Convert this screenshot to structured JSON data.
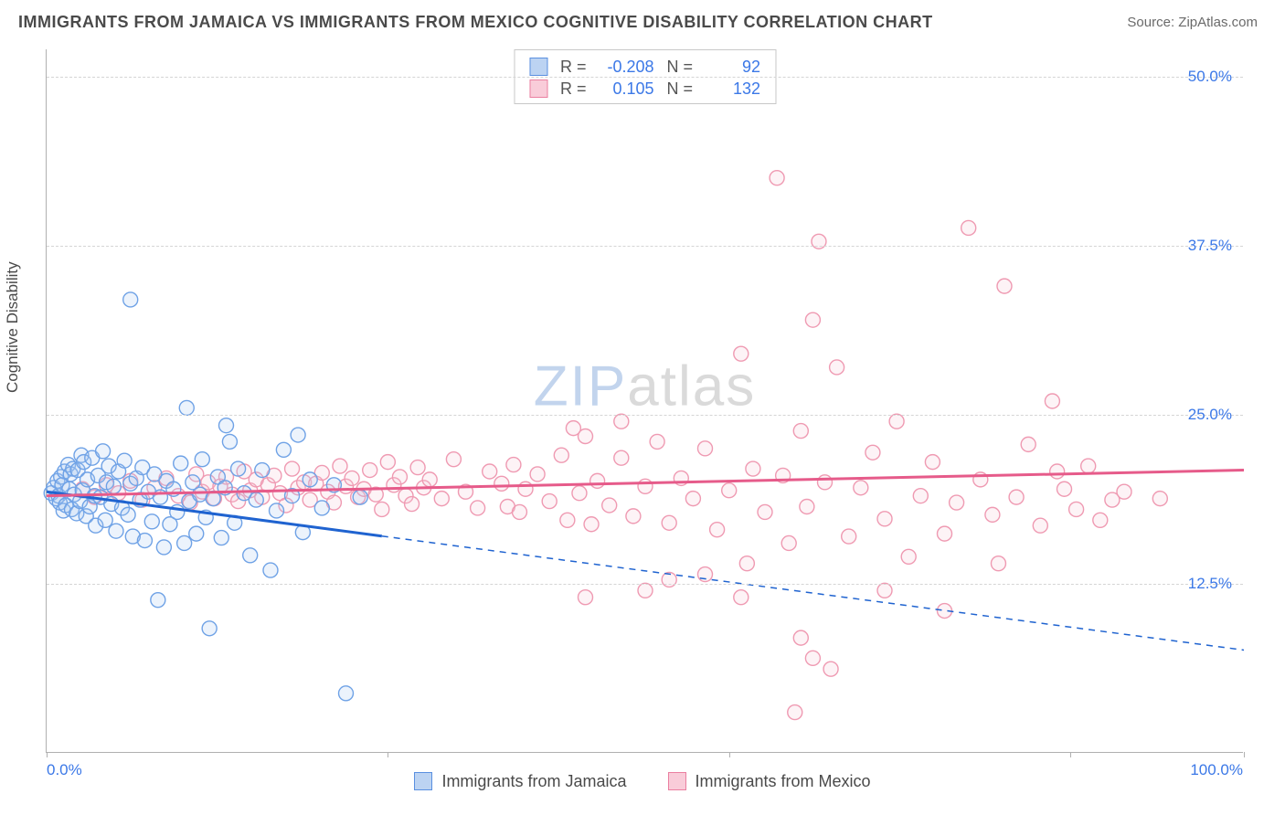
{
  "title": "IMMIGRANTS FROM JAMAICA VS IMMIGRANTS FROM MEXICO COGNITIVE DISABILITY CORRELATION CHART",
  "source_label": "Source:",
  "source_value": "ZipAtlas.com",
  "y_axis_title": "Cognitive Disability",
  "watermark_a": "ZIP",
  "watermark_b": "atlas",
  "chart": {
    "type": "scatter",
    "xlim": [
      0,
      100
    ],
    "ylim": [
      0,
      52
    ],
    "x_tick_positions": [
      0,
      28.5,
      57,
      85.5,
      100
    ],
    "x_tick_labels_left": "0.0%",
    "x_tick_labels_right": "100.0%",
    "y_grid": [
      12.5,
      25.0,
      37.5,
      50.0
    ],
    "y_tick_labels": [
      "12.5%",
      "25.0%",
      "37.5%",
      "50.0%"
    ],
    "background_color": "#ffffff",
    "grid_color": "#d5d5d5",
    "axis_color": "#b0b0b0",
    "tick_label_color": "#3b78e7",
    "marker_radius": 8,
    "marker_stroke_width": 1.4,
    "marker_fill_opacity": 0.22,
    "series": [
      {
        "name": "Immigrants from Jamaica",
        "color_stroke": "#6fa2e6",
        "color_fill": "#a8c7f0",
        "legend_swatch_fill": "#bcd3f2",
        "legend_swatch_stroke": "#5a8fe0",
        "trend_color": "#1f63d0",
        "R": "-0.208",
        "N": "92",
        "trend_line": {
          "x1": 0,
          "y1": 19.3,
          "x2": 100,
          "y2": 7.6
        },
        "trend_solid_until_x": 28,
        "points": [
          [
            0.4,
            19.2
          ],
          [
            0.6,
            19.6
          ],
          [
            0.8,
            18.8
          ],
          [
            0.9,
            20.1
          ],
          [
            1.0,
            19.0
          ],
          [
            1.1,
            18.5
          ],
          [
            1.2,
            20.4
          ],
          [
            1.3,
            19.8
          ],
          [
            1.4,
            17.9
          ],
          [
            1.5,
            20.8
          ],
          [
            1.6,
            18.3
          ],
          [
            1.8,
            21.3
          ],
          [
            1.9,
            19.5
          ],
          [
            2.0,
            20.6
          ],
          [
            2.1,
            18.0
          ],
          [
            2.2,
            21.0
          ],
          [
            2.3,
            19.1
          ],
          [
            2.5,
            17.7
          ],
          [
            2.6,
            20.9
          ],
          [
            2.8,
            18.6
          ],
          [
            2.9,
            22.0
          ],
          [
            3.0,
            19.4
          ],
          [
            3.1,
            21.5
          ],
          [
            3.3,
            17.5
          ],
          [
            3.4,
            20.2
          ],
          [
            3.6,
            18.2
          ],
          [
            3.8,
            21.8
          ],
          [
            4.0,
            19.0
          ],
          [
            4.1,
            16.8
          ],
          [
            4.3,
            20.5
          ],
          [
            4.5,
            18.9
          ],
          [
            4.7,
            22.3
          ],
          [
            4.9,
            17.2
          ],
          [
            5.0,
            20.0
          ],
          [
            5.2,
            21.2
          ],
          [
            5.4,
            18.4
          ],
          [
            5.6,
            19.7
          ],
          [
            5.8,
            16.4
          ],
          [
            6.0,
            20.8
          ],
          [
            6.3,
            18.1
          ],
          [
            6.5,
            21.6
          ],
          [
            6.8,
            17.6
          ],
          [
            7.0,
            19.9
          ],
          [
            7.2,
            16.0
          ],
          [
            7.5,
            20.3
          ],
          [
            7.8,
            18.7
          ],
          [
            8.0,
            21.1
          ],
          [
            8.2,
            15.7
          ],
          [
            8.5,
            19.3
          ],
          [
            8.8,
            17.1
          ],
          [
            9.0,
            20.6
          ],
          [
            9.3,
            11.3
          ],
          [
            9.5,
            18.9
          ],
          [
            9.8,
            15.2
          ],
          [
            7.0,
            33.5
          ],
          [
            10.0,
            20.1
          ],
          [
            10.3,
            16.9
          ],
          [
            10.6,
            19.5
          ],
          [
            10.9,
            17.8
          ],
          [
            11.2,
            21.4
          ],
          [
            11.5,
            15.5
          ],
          [
            11.7,
            25.5
          ],
          [
            11.9,
            18.6
          ],
          [
            12.2,
            20.0
          ],
          [
            12.5,
            16.2
          ],
          [
            12.8,
            19.1
          ],
          [
            13.0,
            21.7
          ],
          [
            13.3,
            17.4
          ],
          [
            13.6,
            9.2
          ],
          [
            13.9,
            18.8
          ],
          [
            14.3,
            20.4
          ],
          [
            14.6,
            15.9
          ],
          [
            14.9,
            19.6
          ],
          [
            15.3,
            23.0
          ],
          [
            15.7,
            17.0
          ],
          [
            16.0,
            21.0
          ],
          [
            16.5,
            19.2
          ],
          [
            17.0,
            14.6
          ],
          [
            17.5,
            18.7
          ],
          [
            18.0,
            20.9
          ],
          [
            15.0,
            24.2
          ],
          [
            18.7,
            13.5
          ],
          [
            19.2,
            17.9
          ],
          [
            19.8,
            22.4
          ],
          [
            20.5,
            19.0
          ],
          [
            21.0,
            23.5
          ],
          [
            21.4,
            16.3
          ],
          [
            22.0,
            20.2
          ],
          [
            23.0,
            18.1
          ],
          [
            24.0,
            19.8
          ],
          [
            25.0,
            4.4
          ],
          [
            26.2,
            18.9
          ]
        ]
      },
      {
        "name": "Immigrants from Mexico",
        "color_stroke": "#ef9ab2",
        "color_fill": "#f7c7d5",
        "legend_swatch_fill": "#f9ccd9",
        "legend_swatch_stroke": "#ea7fa0",
        "trend_color": "#e65b8a",
        "R": "0.105",
        "N": "132",
        "trend_line": {
          "x1": 0,
          "y1": 19.0,
          "x2": 100,
          "y2": 20.9
        },
        "trend_solid_until_x": 100,
        "points": [
          [
            3.0,
            19.5
          ],
          [
            4.0,
            18.9
          ],
          [
            5.0,
            19.8
          ],
          [
            6.0,
            19.2
          ],
          [
            7.0,
            20.1
          ],
          [
            8.0,
            18.7
          ],
          [
            9.0,
            19.6
          ],
          [
            10.0,
            20.3
          ],
          [
            11.0,
            19.0
          ],
          [
            12.0,
            18.5
          ],
          [
            12.5,
            20.6
          ],
          [
            13.0,
            19.3
          ],
          [
            13.5,
            20.0
          ],
          [
            14.0,
            18.8
          ],
          [
            14.5,
            19.7
          ],
          [
            15.0,
            20.4
          ],
          [
            15.5,
            19.1
          ],
          [
            16.0,
            18.6
          ],
          [
            16.5,
            20.8
          ],
          [
            17.0,
            19.4
          ],
          [
            17.5,
            20.2
          ],
          [
            18.0,
            18.9
          ],
          [
            18.5,
            19.8
          ],
          [
            19.0,
            20.5
          ],
          [
            19.5,
            19.2
          ],
          [
            20.0,
            18.3
          ],
          [
            20.5,
            21.0
          ],
          [
            21.0,
            19.6
          ],
          [
            21.5,
            20.0
          ],
          [
            22.0,
            18.7
          ],
          [
            22.5,
            19.9
          ],
          [
            23.0,
            20.7
          ],
          [
            23.5,
            19.3
          ],
          [
            24.0,
            18.5
          ],
          [
            24.5,
            21.2
          ],
          [
            25.0,
            19.7
          ],
          [
            25.5,
            20.3
          ],
          [
            26.0,
            18.9
          ],
          [
            26.5,
            19.5
          ],
          [
            27.0,
            20.9
          ],
          [
            27.5,
            19.1
          ],
          [
            28.0,
            18.0
          ],
          [
            28.5,
            21.5
          ],
          [
            29.0,
            19.8
          ],
          [
            29.5,
            20.4
          ],
          [
            30.0,
            19.0
          ],
          [
            30.5,
            18.4
          ],
          [
            31.0,
            21.1
          ],
          [
            31.5,
            19.6
          ],
          [
            32.0,
            20.2
          ],
          [
            33.0,
            18.8
          ],
          [
            34.0,
            21.7
          ],
          [
            35.0,
            19.3
          ],
          [
            36.0,
            18.1
          ],
          [
            37.0,
            20.8
          ],
          [
            38.0,
            19.9
          ],
          [
            38.5,
            18.2
          ],
          [
            39.0,
            21.3
          ],
          [
            39.5,
            17.8
          ],
          [
            40.0,
            19.5
          ],
          [
            41.0,
            20.6
          ],
          [
            42.0,
            18.6
          ],
          [
            43.0,
            22.0
          ],
          [
            43.5,
            17.2
          ],
          [
            44.0,
            24.0
          ],
          [
            44.5,
            19.2
          ],
          [
            45.0,
            23.4
          ],
          [
            45.5,
            16.9
          ],
          [
            46.0,
            20.1
          ],
          [
            47.0,
            18.3
          ],
          [
            48.0,
            21.8
          ],
          [
            49.0,
            17.5
          ],
          [
            50.0,
            19.7
          ],
          [
            51.0,
            23.0
          ],
          [
            52.0,
            17.0
          ],
          [
            53.0,
            20.3
          ],
          [
            54.0,
            18.8
          ],
          [
            55.0,
            22.5
          ],
          [
            56.0,
            16.5
          ],
          [
            57.0,
            19.4
          ],
          [
            58.0,
            29.5
          ],
          [
            58.5,
            14.0
          ],
          [
            59.0,
            21.0
          ],
          [
            60.0,
            17.8
          ],
          [
            61.0,
            42.5
          ],
          [
            61.5,
            20.5
          ],
          [
            62.0,
            15.5
          ],
          [
            63.0,
            23.8
          ],
          [
            63.5,
            18.2
          ],
          [
            64.0,
            32.0
          ],
          [
            64.5,
            37.8
          ],
          [
            65.0,
            20.0
          ],
          [
            66.0,
            28.5
          ],
          [
            67.0,
            16.0
          ],
          [
            68.0,
            19.6
          ],
          [
            69.0,
            22.2
          ],
          [
            62.5,
            3.0
          ],
          [
            63.0,
            8.5
          ],
          [
            64.0,
            7.0
          ],
          [
            70.0,
            17.3
          ],
          [
            71.0,
            24.5
          ],
          [
            72.0,
            14.5
          ],
          [
            73.0,
            19.0
          ],
          [
            74.0,
            21.5
          ],
          [
            75.0,
            16.2
          ],
          [
            76.0,
            18.5
          ],
          [
            77.0,
            38.8
          ],
          [
            78.0,
            20.2
          ],
          [
            79.0,
            17.6
          ],
          [
            79.5,
            14.0
          ],
          [
            80.0,
            34.5
          ],
          [
            81.0,
            18.9
          ],
          [
            82.0,
            22.8
          ],
          [
            83.0,
            16.8
          ],
          [
            84.0,
            26.0
          ],
          [
            84.4,
            20.8
          ],
          [
            85.0,
            19.5
          ],
          [
            86.0,
            18.0
          ],
          [
            87.0,
            21.2
          ],
          [
            88.0,
            17.2
          ],
          [
            89.0,
            18.7
          ],
          [
            90.0,
            19.3
          ],
          [
            93.0,
            18.8
          ],
          [
            65.5,
            6.2
          ],
          [
            70.0,
            12.0
          ],
          [
            75.0,
            10.5
          ],
          [
            58.0,
            11.5
          ],
          [
            55.0,
            13.2
          ],
          [
            52.0,
            12.8
          ],
          [
            48.0,
            24.5
          ],
          [
            50.0,
            12.0
          ],
          [
            45.0,
            11.5
          ]
        ]
      }
    ]
  },
  "stats_labels": {
    "R": "R =",
    "N": "N ="
  }
}
